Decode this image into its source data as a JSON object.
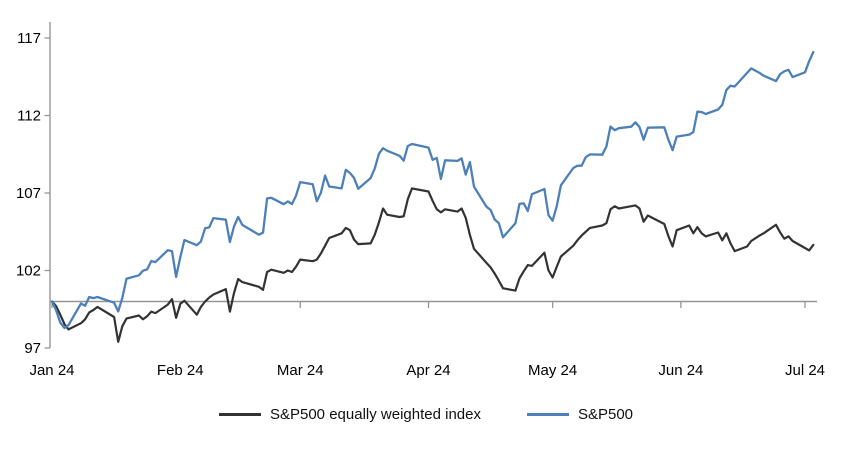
{
  "chart_data": {
    "type": "line",
    "title": "",
    "description": "Indexed performance of S&P500 vs S&P500 equally weighted index, Jan 2024 to early Jul 2024, base 100",
    "x_axis": {
      "tick_labels": [
        "Jan 24",
        "Feb 24",
        "Mar 24",
        "Apr 24",
        "May 24",
        "Jun 24",
        "Jul 24"
      ],
      "tick_day_of_year": [
        1,
        32,
        61,
        92,
        122,
        153,
        183
      ]
    },
    "y_axis": {
      "tick_labels": [
        "97",
        "102",
        "107",
        "112",
        "117"
      ],
      "tick_values": [
        97,
        102,
        107,
        112,
        117
      ],
      "range": [
        97,
        117
      ]
    },
    "baseline_value": 100,
    "grid": "off",
    "legend_position": "bottom",
    "x_day_of_year": [
      1,
      2,
      3,
      4,
      5,
      8,
      9,
      10,
      11,
      12,
      16,
      17,
      18,
      19,
      22,
      23,
      24,
      25,
      26,
      29,
      30,
      31,
      32,
      33,
      36,
      37,
      38,
      39,
      40,
      43,
      44,
      45,
      46,
      47,
      51,
      52,
      53,
      54,
      57,
      58,
      59,
      60,
      61,
      64,
      65,
      66,
      67,
      68,
      71,
      72,
      73,
      74,
      75,
      78,
      79,
      80,
      81,
      82,
      85,
      86,
      87,
      88,
      92,
      93,
      94,
      95,
      96,
      99,
      100,
      101,
      102,
      103,
      106,
      107,
      108,
      109,
      110,
      113,
      114,
      115,
      116,
      117,
      120,
      121,
      122,
      123,
      124,
      127,
      128,
      129,
      130,
      131,
      134,
      135,
      136,
      137,
      138,
      141,
      142,
      143,
      144,
      145,
      149,
      150,
      151,
      152,
      155,
      156,
      157,
      158,
      159,
      162,
      163,
      164,
      165,
      166,
      169,
      170,
      172,
      173,
      176,
      177,
      178,
      179,
      180,
      183,
      184,
      185
    ],
    "series": [
      {
        "name": "S&P500 equally weighted index",
        "color": "#333333",
        "stroke_width": 2.2,
        "values": [
          100.0,
          99.7,
          99.15,
          98.55,
          98.2,
          98.6,
          98.85,
          99.3,
          99.45,
          99.65,
          99.0,
          97.4,
          98.4,
          98.9,
          99.1,
          98.85,
          99.05,
          99.35,
          99.25,
          99.8,
          100.15,
          98.95,
          99.85,
          100.05,
          99.15,
          99.65,
          100.0,
          100.25,
          100.45,
          100.8,
          99.35,
          100.55,
          101.45,
          101.25,
          100.95,
          100.75,
          101.9,
          102.05,
          101.85,
          102.0,
          101.9,
          102.25,
          102.7,
          102.6,
          102.7,
          103.1,
          103.6,
          104.1,
          104.4,
          104.75,
          104.6,
          104.0,
          103.7,
          103.75,
          104.3,
          105.1,
          106.0,
          105.6,
          105.45,
          105.5,
          106.6,
          107.3,
          107.1,
          106.5,
          105.95,
          105.75,
          105.95,
          105.8,
          106.0,
          105.4,
          104.3,
          103.4,
          102.5,
          102.2,
          101.8,
          101.35,
          100.85,
          100.7,
          101.5,
          101.95,
          102.35,
          102.3,
          103.15,
          102.0,
          101.55,
          102.25,
          102.9,
          103.6,
          103.95,
          104.25,
          104.5,
          104.75,
          104.9,
          105.05,
          105.95,
          106.15,
          106.0,
          106.15,
          106.2,
          106.0,
          105.15,
          105.55,
          105.0,
          104.2,
          103.55,
          104.6,
          104.9,
          104.4,
          104.8,
          104.4,
          104.2,
          104.45,
          103.95,
          104.4,
          103.75,
          103.25,
          103.55,
          103.9,
          104.25,
          104.4,
          104.95,
          104.45,
          104.05,
          104.2,
          103.9,
          103.45,
          103.3,
          103.65
        ]
      },
      {
        "name": "S&P500",
        "color": "#4d80b8",
        "stroke_width": 2.3,
        "values": [
          100.0,
          99.43,
          98.64,
          98.3,
          98.48,
          99.87,
          99.72,
          100.29,
          100.22,
          100.29,
          99.92,
          99.36,
          100.23,
          101.47,
          101.69,
          101.99,
          102.07,
          102.61,
          102.54,
          103.31,
          103.25,
          101.59,
          102.86,
          103.96,
          103.63,
          103.87,
          104.72,
          104.78,
          105.38,
          105.28,
          103.84,
          104.84,
          105.45,
          104.94,
          104.31,
          104.44,
          106.65,
          106.69,
          106.28,
          106.46,
          106.29,
          106.84,
          107.7,
          107.57,
          106.47,
          107.02,
          108.12,
          107.42,
          107.3,
          108.5,
          108.29,
          107.98,
          107.28,
          107.96,
          108.57,
          109.53,
          109.89,
          109.73,
          109.4,
          109.09,
          110.03,
          110.16,
          109.93,
          109.14,
          109.26,
          107.91,
          109.11,
          109.07,
          109.23,
          108.19,
          109.0,
          107.41,
          106.12,
          105.9,
          105.29,
          105.06,
          104.14,
          105.05,
          106.3,
          106.33,
          105.84,
          106.92,
          107.26,
          105.57,
          105.21,
          106.17,
          107.5,
          108.61,
          108.76,
          108.76,
          109.31,
          109.49,
          109.47,
          110.0,
          111.29,
          111.05,
          111.18,
          111.28,
          111.56,
          111.26,
          110.44,
          111.21,
          111.24,
          110.42,
          109.76,
          110.64,
          110.77,
          110.93,
          112.25,
          112.22,
          112.1,
          112.39,
          112.69,
          113.65,
          113.92,
          113.87,
          114.75,
          115.04,
          114.75,
          114.57,
          114.22,
          114.67,
          114.85,
          114.95,
          114.48,
          114.79,
          115.5,
          116.09
        ]
      }
    ]
  },
  "colors": {
    "background": "#ffffff",
    "axis": "#969696",
    "baseline": "#969696",
    "tick_text": "#000000"
  }
}
